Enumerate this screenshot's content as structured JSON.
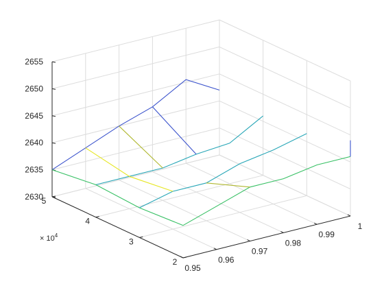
{
  "chart_data": {
    "type": "line",
    "view": "3d",
    "title": "",
    "xlabel": "",
    "ylabel": "",
    "zlabel": "",
    "x_label_exponent": "4",
    "grid": true,
    "xlim": [
      20000,
      50000
    ],
    "ylim": [
      0.95,
      1.0
    ],
    "zlim": [
      2630,
      2655
    ],
    "x_ticks": [
      "2",
      "3",
      "4",
      "5"
    ],
    "y_ticks": [
      "0.95",
      "0.96",
      "0.97",
      "0.98",
      "0.99",
      "1"
    ],
    "z_ticks": [
      "2630",
      "2635",
      "2640",
      "2645",
      "2650",
      "2655"
    ],
    "colors": [
      "#3a52cc",
      "#27a6b7",
      "#37c064",
      "#e6e620",
      "#b0b830"
    ],
    "series": [
      {
        "points": [
          [
            50000,
            0.95,
            2635
          ],
          [
            50000,
            0.96,
            2637.5
          ],
          [
            50000,
            0.97,
            2640
          ],
          [
            50000,
            0.98,
            2642
          ],
          [
            50000,
            0.99,
            2645.5
          ],
          [
            50000,
            1.0,
            2642
          ]
        ]
      },
      {
        "points": [
          [
            40000,
            0.95,
            2636
          ],
          [
            40000,
            0.96,
            2636
          ],
          [
            40000,
            0.97,
            2636
          ],
          [
            40000,
            0.98,
            2637
          ],
          [
            40000,
            0.99,
            2637.5
          ],
          [
            40000,
            1.0,
            2641
          ]
        ]
      },
      {
        "points": [
          [
            50000,
            0.95,
            2635
          ],
          [
            40000,
            0.95,
            2636
          ],
          [
            30000,
            0.95,
            2635.5
          ],
          [
            20000,
            0.95,
            2636
          ]
        ]
      },
      {
        "points": [
          [
            50000,
            0.96,
            2637.5
          ],
          [
            40000,
            0.96,
            2636
          ]
        ]
      },
      {
        "points": [
          [
            50000,
            0.97,
            2640
          ],
          [
            40000,
            0.97,
            2636
          ]
        ]
      },
      {
        "points": [
          [
            50000,
            0.98,
            2642
          ],
          [
            40000,
            0.98,
            2637
          ]
        ]
      },
      {
        "points": [
          [
            30000,
            0.95,
            2635.5
          ],
          [
            30000,
            0.96,
            2637
          ],
          [
            30000,
            0.97,
            2637
          ],
          [
            30000,
            0.98,
            2639
          ],
          [
            30000,
            0.99,
            2640
          ],
          [
            30000,
            1.0,
            2641.5
          ]
        ]
      },
      {
        "points": [
          [
            20000,
            0.95,
            2636
          ],
          [
            20000,
            0.96,
            2638
          ],
          [
            20000,
            0.97,
            2640
          ],
          [
            20000,
            0.98,
            2640
          ],
          [
            20000,
            0.99,
            2641
          ],
          [
            20000,
            1.0,
            2641
          ]
        ]
      },
      {
        "points": [
          [
            30000,
            0.96,
            2637
          ],
          [
            40000,
            0.96,
            2636
          ]
        ]
      },
      {
        "points": [
          [
            30000,
            0.97,
            2637
          ],
          [
            20000,
            0.97,
            2640
          ]
        ]
      },
      {
        "points": [
          [
            20000,
            1.0,
            2641
          ],
          [
            20000,
            1.0,
            2644
          ]
        ]
      }
    ]
  }
}
